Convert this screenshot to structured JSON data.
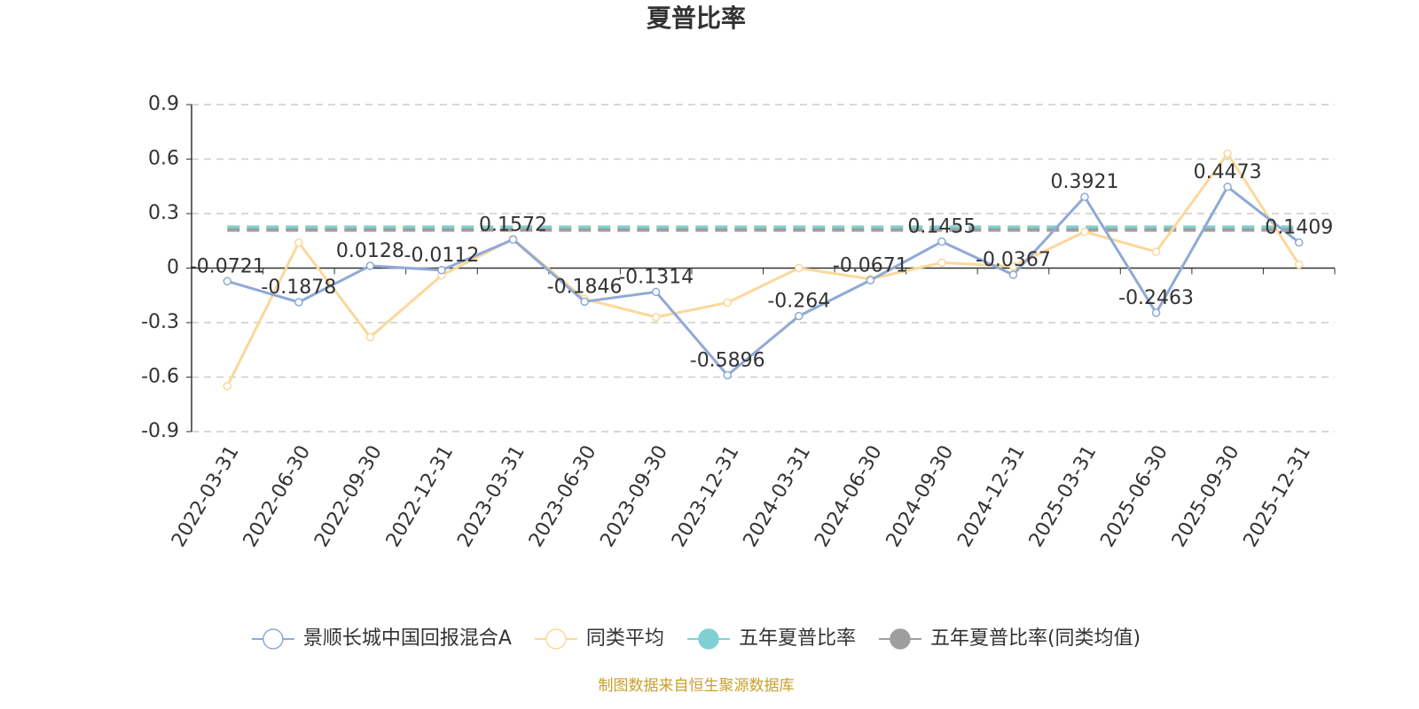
{
  "chart_data": {
    "type": "line",
    "title": "夏普比率",
    "categories": [
      "2022-03-31",
      "2022-06-30",
      "2022-09-30",
      "2022-12-31",
      "2023-03-31",
      "2023-06-30",
      "2023-09-30",
      "2023-12-31",
      "2024-03-31",
      "2024-06-30",
      "2024-09-30",
      "2024-12-31",
      "2025-03-31",
      "2025-06-30",
      "2025-09-30",
      "2025-12-31"
    ],
    "series": [
      {
        "name": "景顺长城中国回报混合A",
        "color": "#8fa9d6",
        "values": [
          -0.0721,
          -0.1878,
          0.0128,
          -0.0112,
          0.1572,
          -0.1846,
          -0.1314,
          -0.5896,
          -0.264,
          -0.0671,
          0.1455,
          -0.0367,
          0.3921,
          -0.2463,
          0.4473,
          0.1409
        ]
      },
      {
        "name": "同类平均",
        "color": "#fbd89a",
        "values": [
          -0.65,
          0.14,
          -0.38,
          -0.04,
          0.16,
          -0.17,
          -0.27,
          -0.19,
          0.0,
          -0.06,
          0.03,
          0.01,
          0.2,
          0.09,
          0.63,
          0.02
        ]
      }
    ],
    "reference_lines": [
      {
        "name": "五年夏普比率",
        "color": "#7fd0d2",
        "value": 0.225
      },
      {
        "name": "五年夏普比率(同类均值)",
        "color": "#9e9e9e",
        "value": 0.21
      }
    ],
    "ylim": [
      -0.9,
      0.9
    ],
    "yticks": [
      -0.9,
      -0.6,
      -0.3,
      0,
      0.3,
      0.6,
      0.9
    ],
    "grid": true,
    "legend": "bottom",
    "source": "制图数据来自恒生聚源数据库"
  }
}
